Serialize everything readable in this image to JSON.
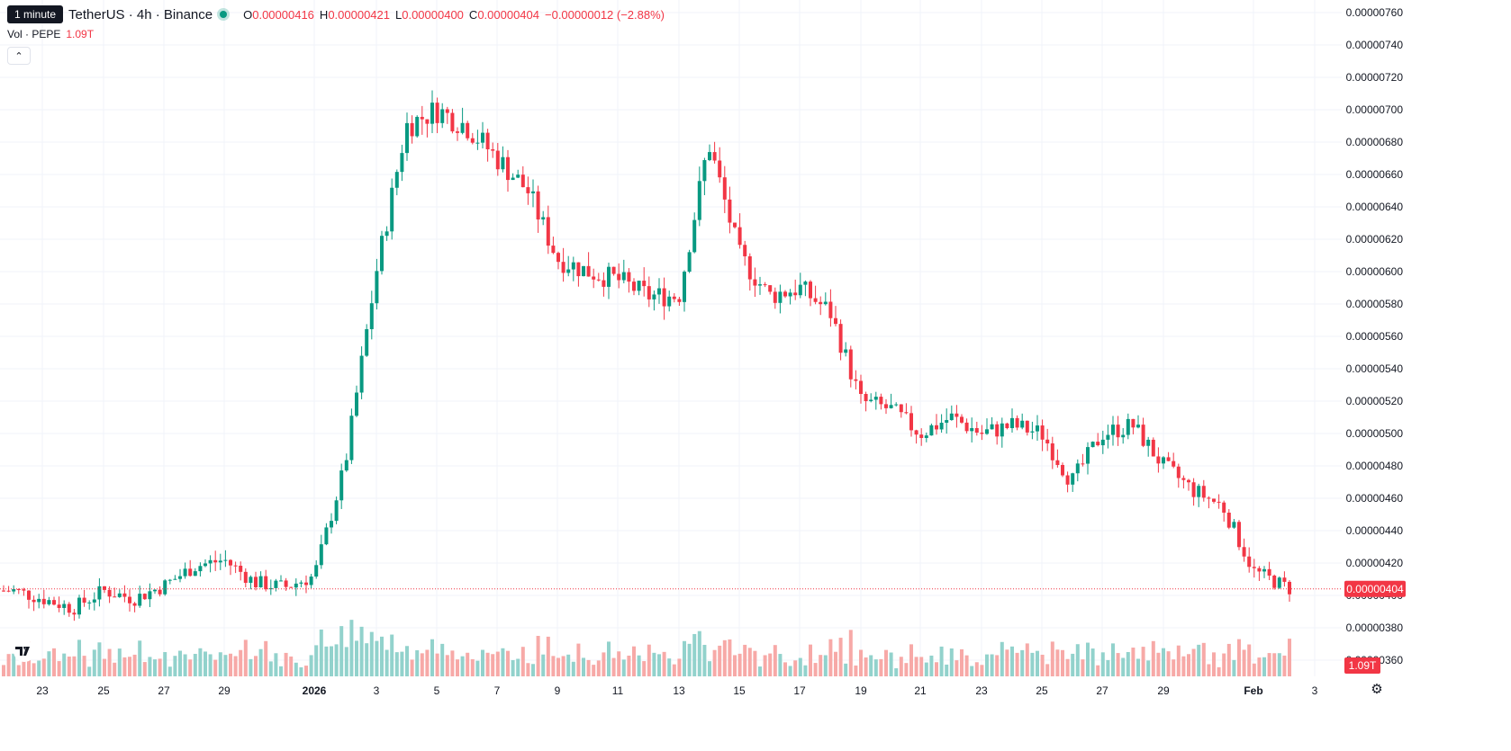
{
  "header": {
    "tooltip": "1 minute",
    "symbol": "TetherUS · 4h · Binance",
    "open_label": "O",
    "open": "0.00000416",
    "high_label": "H",
    "high": "0.00000421",
    "low_label": "L",
    "low": "0.00000400",
    "close_label": "C",
    "close": "0.00000404",
    "change": "−0.00000012 (−2.88%)"
  },
  "volume_legend": {
    "label": "Vol · PEPE",
    "value": "1.09T"
  },
  "colors": {
    "up": "#089981",
    "down": "#f23645",
    "up_volume": "#92d2cc",
    "down_volume": "#f7a9a7",
    "grid": "#f0f3fa"
  },
  "icons": {
    "collapse": "chevron-up-icon",
    "logo": "tradingview-logo-icon",
    "settings": "gear-icon"
  },
  "price_axis_labels": [
    "0.00000760",
    "0.00000740",
    "0.00000720",
    "0.00000700",
    "0.00000680",
    "0.00000660",
    "0.00000640",
    "0.00000620",
    "0.00000600",
    "0.00000580",
    "0.00000560",
    "0.00000540",
    "0.00000520",
    "0.00000500",
    "0.00000480",
    "0.00000460",
    "0.00000440",
    "0.00000420",
    "0.00000400",
    "0.00000380",
    "0.00000360"
  ],
  "current_price_label": "0.00000404",
  "current_volume_label": "1.09T",
  "time_axis_labels": [
    "23",
    "25",
    "27",
    "29",
    "2026",
    "3",
    "5",
    "7",
    "9",
    "11",
    "13",
    "15",
    "17",
    "19",
    "21",
    "23",
    "25",
    "27",
    "29",
    "Feb",
    "3"
  ],
  "chart_data": {
    "type": "candlestick",
    "interval": "4h",
    "y_range": [
      3.5e-06,
      7.6e-06
    ],
    "last_price": 4.04e-06,
    "last_volume": "1.09T",
    "price_path": [
      {
        "date": "Dec 22",
        "price": 4.03e-06
      },
      {
        "date": "Dec 23",
        "price": 3.98e-06
      },
      {
        "date": "Dec 24",
        "price": 3.92e-06
      },
      {
        "date": "Dec 25",
        "price": 4.03e-06
      },
      {
        "date": "Dec 26",
        "price": 3.98e-06
      },
      {
        "date": "Dec 27",
        "price": 4.06e-06
      },
      {
        "date": "Dec 28",
        "price": 4.18e-06
      },
      {
        "date": "Dec 29",
        "price": 4.22e-06
      },
      {
        "date": "Dec 30",
        "price": 4.08e-06
      },
      {
        "date": "Dec 31",
        "price": 4.05e-06
      },
      {
        "date": "Jan 1",
        "price": 4.12e-06
      },
      {
        "date": "Jan 2",
        "price": 4.8e-06
      },
      {
        "date": "Jan 3",
        "price": 6e-06
      },
      {
        "date": "Jan 4",
        "price": 6.9e-06
      },
      {
        "date": "Jan 5",
        "price": 7e-06
      },
      {
        "date": "Jan 6",
        "price": 6.9e-06
      },
      {
        "date": "Jan 7",
        "price": 6.7e-06
      },
      {
        "date": "Jan 8",
        "price": 6.5e-06
      },
      {
        "date": "Jan 9",
        "price": 6.08e-06
      },
      {
        "date": "Jan 10",
        "price": 6e-06
      },
      {
        "date": "Jan 11",
        "price": 5.95e-06
      },
      {
        "date": "Jan 12",
        "price": 5.85e-06
      },
      {
        "date": "Jan 13",
        "price": 5.85e-06
      },
      {
        "date": "Jan 14",
        "price": 6.8e-06
      },
      {
        "date": "Jan 15",
        "price": 6.1e-06
      },
      {
        "date": "Jan 16",
        "price": 5.85e-06
      },
      {
        "date": "Jan 17",
        "price": 5.9e-06
      },
      {
        "date": "Jan 18",
        "price": 5.75e-06
      },
      {
        "date": "Jan 19",
        "price": 5.2e-06
      },
      {
        "date": "Jan 20",
        "price": 5.15e-06
      },
      {
        "date": "Jan 21",
        "price": 5e-06
      },
      {
        "date": "Jan 22",
        "price": 5.1e-06
      },
      {
        "date": "Jan 23",
        "price": 5e-06
      },
      {
        "date": "Jan 24",
        "price": 5.05e-06
      },
      {
        "date": "Jan 25",
        "price": 5e-06
      },
      {
        "date": "Jan 26",
        "price": 4.7e-06
      },
      {
        "date": "Jan 27",
        "price": 5e-06
      },
      {
        "date": "Jan 28",
        "price": 5.05e-06
      },
      {
        "date": "Jan 29",
        "price": 4.8e-06
      },
      {
        "date": "Jan 30",
        "price": 4.65e-06
      },
      {
        "date": "Jan 31",
        "price": 4.55e-06
      },
      {
        "date": "Feb 1",
        "price": 4.15e-06
      },
      {
        "date": "Feb 2",
        "price": 4.04e-06
      }
    ]
  }
}
